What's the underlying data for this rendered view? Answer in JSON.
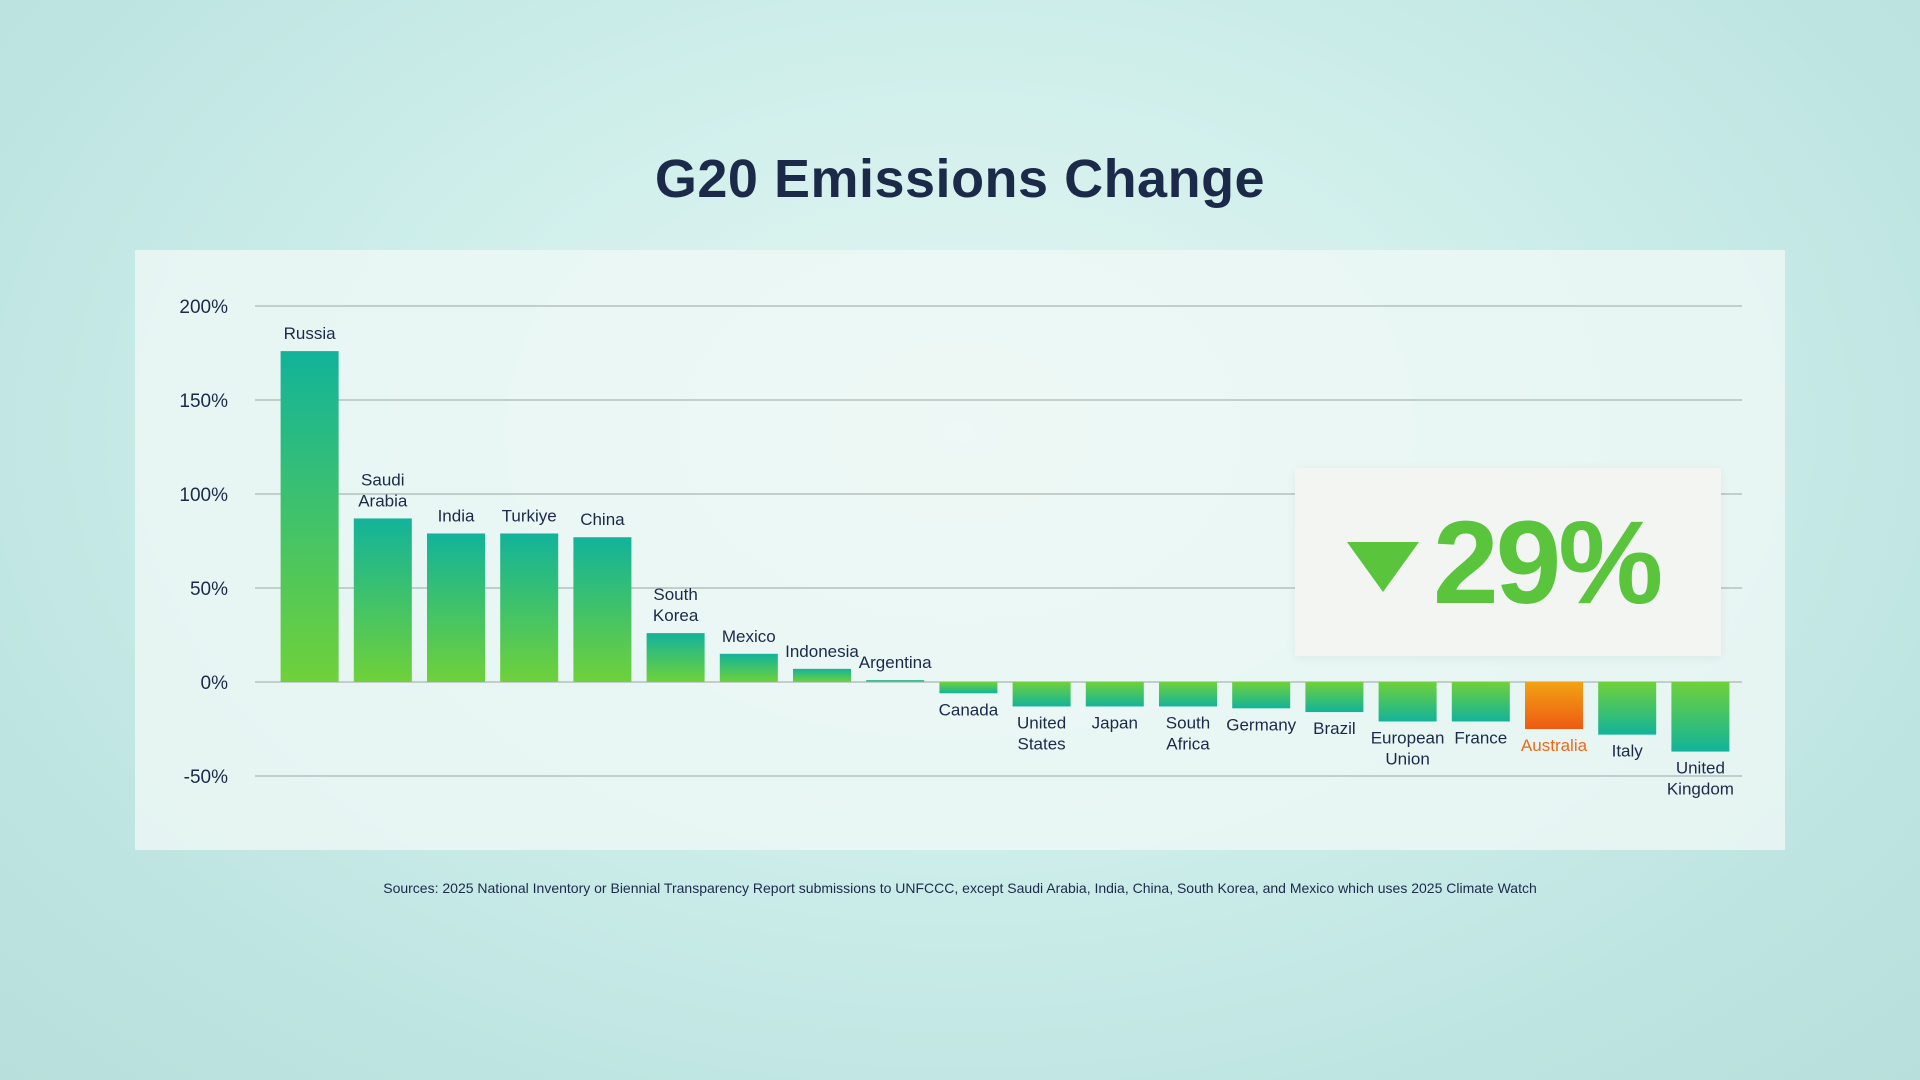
{
  "title": "G20 Emissions Change",
  "callout": {
    "value": "29%",
    "direction": "down",
    "color": "#5ac43c"
  },
  "source": "Sources: 2025 National Inventory or Biennial Transparency Report submissions to UNFCCC, except Saudi Arabia, India, China, South Korea, and Mexico which uses 2025 Climate Watch",
  "colors": {
    "bar_top": "#12b39a",
    "bar_bottom": "#6fd13a",
    "highlight_top": "#f2a314",
    "highlight_bottom": "#ee5a12",
    "highlight_label": "#ee6a1a",
    "text": "#1c2a4a"
  },
  "chart_data": {
    "type": "bar",
    "title": "G20 Emissions Change",
    "xlabel": "",
    "ylabel": "",
    "ylim": [
      -50,
      200
    ],
    "yticks": [
      200,
      150,
      100,
      50,
      0,
      -50
    ],
    "ytick_labels": [
      "200%",
      "150%",
      "100%",
      "50%",
      "0%",
      "-50%"
    ],
    "grid": true,
    "highlight": "Australia",
    "categories": [
      "Russia",
      "Saudi Arabia",
      "India",
      "Turkiye",
      "China",
      "South Korea",
      "Mexico",
      "Indonesia",
      "Argentina",
      "Canada",
      "United States",
      "Japan",
      "South Africa",
      "Germany",
      "Brazil",
      "European Union",
      "France",
      "Australia",
      "Italy",
      "United Kingdom"
    ],
    "labels": [
      [
        "Russia"
      ],
      [
        "Saudi",
        "Arabia"
      ],
      [
        "India"
      ],
      [
        "Turkiye"
      ],
      [
        "China"
      ],
      [
        "South",
        "Korea"
      ],
      [
        "Mexico"
      ],
      [
        "Indonesia"
      ],
      [
        "Argentina"
      ],
      [
        "Canada"
      ],
      [
        "United",
        "States"
      ],
      [
        "Japan"
      ],
      [
        "South",
        "Africa"
      ],
      [
        "Germany"
      ],
      [
        "Brazil"
      ],
      [
        "European",
        "Union"
      ],
      [
        "France"
      ],
      [
        "Australia"
      ],
      [
        "Italy"
      ],
      [
        "United",
        "Kingdom"
      ]
    ],
    "values": [
      176,
      87,
      79,
      79,
      77,
      26,
      15,
      7,
      1,
      -6,
      -13,
      -13,
      -13,
      -14,
      -16,
      -21,
      -21,
      -25,
      -28,
      -37
    ]
  }
}
